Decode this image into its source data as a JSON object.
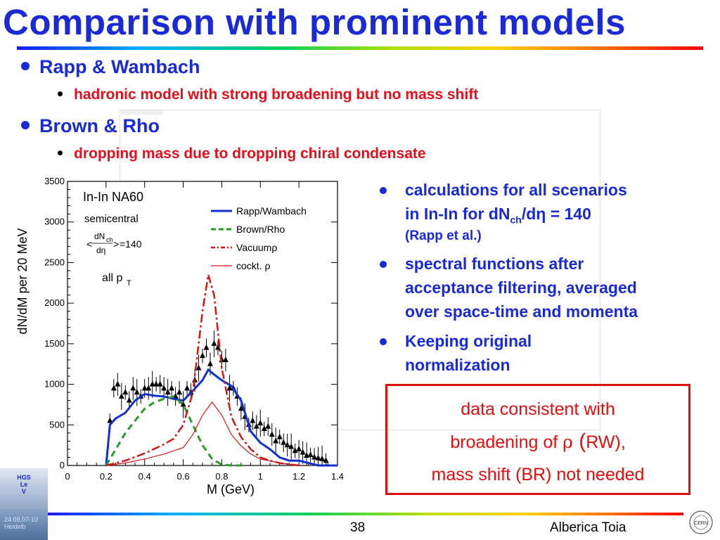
{
  "title": "Comparison with prominent models",
  "bullets": [
    {
      "label": "Rapp & Wambach",
      "sub": "hadronic model with strong broadening but no mass shift"
    },
    {
      "label": "Brown & Rho",
      "sub": "dropping mass due to dropping chiral condensate"
    }
  ],
  "right_bullets": {
    "b1_line1": "calculations for all scenarios",
    "b1_line2_pre": "in In-In for dN",
    "b1_line2_sub": "ch",
    "b1_line2_post": "/dη = 140",
    "b1_line3": "(Rapp et al.)",
    "b2_line1": "spectral functions after",
    "b2_line2": "acceptance filtering, averaged",
    "b2_line3": "over space-time and momenta",
    "b3_line1": "Keeping original",
    "b3_line2": "normalization"
  },
  "note": {
    "line1": "data consistent with",
    "line2_pre": "broadening of ",
    "line2_rho": "ρ",
    "line2_paren": " (",
    "line2_post": "RW),",
    "line3": "mass shift (BR) not needed"
  },
  "footer": {
    "page": "38",
    "author": "Alberica Toia"
  },
  "left_thumbs": {
    "top": "HGS\nLe\nV",
    "bottom": "24.09.07-10\nHeidelb"
  },
  "chart_data": {
    "type": "line",
    "ylabel": "dN/dM per 20 MeV",
    "xlabel": "M (GeV)",
    "xlim": [
      0,
      1.4
    ],
    "ylim": [
      0,
      3500
    ],
    "xticks": [
      "0",
      "0.2",
      "0.4",
      "0.6",
      "0.8",
      "1",
      "1.2",
      "1.4"
    ],
    "yticks": [
      "0",
      "500",
      "1000",
      "1500",
      "2000",
      "2500",
      "3000",
      "3500"
    ],
    "annotations": {
      "system": "In-In NA60",
      "centrality": "semicentral",
      "mult_num": "dN",
      "mult_sub": "ch",
      "mult_den": "dη",
      "mult_val": "=140",
      "pt": "all p",
      "pt_sub": "T"
    },
    "legend": [
      "Rapp/Wambach",
      "Brown/Rho",
      "Vacuumρ",
      "cockt. ρ"
    ],
    "series": [
      {
        "name": "Rapp/Wambach",
        "color": "#1030d0",
        "dash": "none",
        "x": [
          0.2,
          0.22,
          0.25,
          0.3,
          0.35,
          0.4,
          0.45,
          0.5,
          0.55,
          0.6,
          0.65,
          0.7,
          0.73,
          0.76,
          0.8,
          0.85,
          0.9,
          0.95,
          1.0,
          1.05,
          1.1,
          1.15,
          1.2,
          1.3,
          1.4
        ],
        "y": [
          0,
          500,
          580,
          650,
          800,
          880,
          860,
          850,
          820,
          800,
          920,
          1050,
          1180,
          1120,
          1050,
          980,
          800,
          420,
          280,
          200,
          100,
          60,
          60,
          0,
          0
        ]
      },
      {
        "name": "Brown/Rho",
        "color": "#2a9a2a",
        "dash": "9,6",
        "x": [
          0.2,
          0.25,
          0.3,
          0.35,
          0.4,
          0.45,
          0.5,
          0.55,
          0.6,
          0.65,
          0.7,
          0.75,
          0.8,
          0.85,
          0.9
        ],
        "y": [
          0,
          200,
          400,
          550,
          700,
          780,
          820,
          850,
          750,
          500,
          250,
          80,
          10,
          0,
          0
        ]
      },
      {
        "name": "Vacuumρ",
        "color": "#d01818",
        "dash": "12,4,3,4",
        "x": [
          0.2,
          0.3,
          0.4,
          0.5,
          0.55,
          0.6,
          0.65,
          0.7,
          0.73,
          0.76,
          0.8,
          0.85,
          0.9,
          0.95,
          1.0,
          1.05,
          1.1,
          1.2
        ],
        "y": [
          0,
          60,
          150,
          260,
          330,
          500,
          900,
          1900,
          2350,
          2100,
          1200,
          600,
          350,
          200,
          100,
          60,
          30,
          0
        ]
      },
      {
        "name": "cockt. ρ",
        "color": "#d01818",
        "dash": "none",
        "x": [
          0.2,
          0.3,
          0.4,
          0.5,
          0.6,
          0.65,
          0.7,
          0.75,
          0.8,
          0.85,
          0.9,
          0.95,
          1.0,
          1.1,
          1.2
        ],
        "y": [
          0,
          30,
          80,
          140,
          220,
          380,
          620,
          780,
          620,
          380,
          240,
          140,
          80,
          30,
          0
        ]
      }
    ],
    "points": {
      "x": [
        0.22,
        0.24,
        0.26,
        0.28,
        0.3,
        0.32,
        0.34,
        0.36,
        0.38,
        0.4,
        0.42,
        0.44,
        0.46,
        0.48,
        0.5,
        0.52,
        0.54,
        0.56,
        0.58,
        0.6,
        0.62,
        0.64,
        0.66,
        0.68,
        0.7,
        0.72,
        0.74,
        0.76,
        0.78,
        0.8,
        0.82,
        0.84,
        0.86,
        0.88,
        0.9,
        0.92,
        0.94,
        0.96,
        0.98,
        1.0,
        1.02,
        1.04,
        1.06,
        1.08,
        1.1,
        1.12,
        1.14,
        1.16,
        1.18,
        1.2,
        1.22,
        1.24,
        1.26,
        1.28,
        1.3,
        1.32,
        1.34
      ],
      "y": [
        550,
        950,
        1000,
        850,
        900,
        800,
        950,
        900,
        850,
        950,
        950,
        1000,
        1000,
        1000,
        950,
        900,
        950,
        850,
        900,
        750,
        950,
        900,
        1050,
        1200,
        1350,
        1450,
        1250,
        1500,
        1450,
        1300,
        1300,
        950,
        950,
        850,
        700,
        600,
        500,
        550,
        480,
        520,
        450,
        480,
        380,
        300,
        350,
        280,
        250,
        230,
        180,
        200,
        160,
        120,
        130,
        100,
        90,
        80,
        60
      ]
    }
  }
}
